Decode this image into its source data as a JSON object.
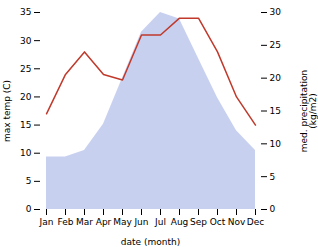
{
  "chart_data": {
    "type": "line",
    "xlabel": "date (month)",
    "ylabel": "max temp (C)",
    "y2label": "med. precipitation\n(kg/m2)",
    "categories": [
      "Jan",
      "Feb",
      "Mar",
      "Apr",
      "May",
      "Jun",
      "Jul",
      "Aug",
      "Sep",
      "Oct",
      "Nov",
      "Dec"
    ],
    "series": [
      {
        "type": "area",
        "color": "#b0bce8",
        "axis": "y2",
        "values": [
          8,
          8,
          9,
          13,
          20,
          27,
          30,
          29,
          23,
          17,
          12,
          9
        ]
      },
      {
        "type": "line",
        "color": "#c0392b",
        "values": [
          17,
          24,
          28,
          24,
          23,
          31,
          31,
          34,
          34,
          28,
          20,
          15
        ]
      }
    ],
    "ylim": [
      0,
      35
    ],
    "yticks": [
      0,
      5,
      10,
      15,
      20,
      25,
      30,
      35
    ],
    "y2lim": [
      0,
      30
    ],
    "y2ticks": [
      0,
      5,
      10,
      15,
      20,
      25,
      30
    ],
    "grid": false
  }
}
